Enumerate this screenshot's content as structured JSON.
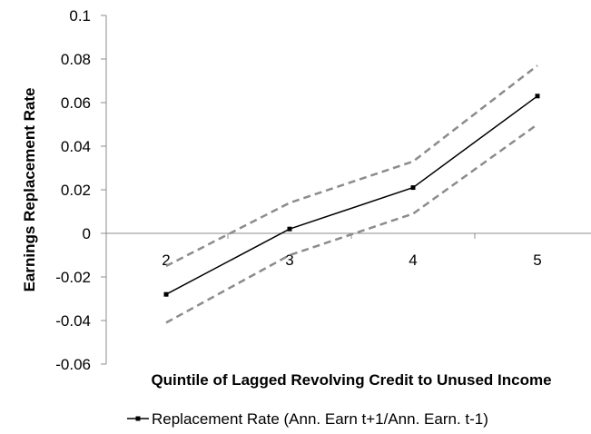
{
  "chart_data": {
    "type": "line",
    "title": "",
    "xlabel": "Quintile of Lagged Revolving Credit to Unused Income",
    "ylabel": "Earnings Replacement Rate",
    "categories": [
      "2",
      "3",
      "4",
      "5"
    ],
    "ylim": [
      -0.06,
      0.1
    ],
    "yticks": [
      "0.1",
      "0.08",
      "0.06",
      "0.04",
      "0.02",
      "0",
      "-0.02",
      "-0.04",
      "-0.06"
    ],
    "grid": false,
    "legend_position": "bottom",
    "series": [
      {
        "name": "Replacement Rate (Ann. Earn t+1/Ann. Earn. t-1)",
        "values": [
          -0.028,
          0.002,
          0.021,
          0.063
        ],
        "style": "solid",
        "color": "#000000",
        "marker": "square"
      },
      {
        "values": [
          -0.015,
          0.014,
          0.033,
          0.077
        ],
        "style": "dashed",
        "color": "#8c8c8c"
      },
      {
        "values": [
          -0.041,
          -0.01,
          0.009,
          0.05
        ],
        "style": "dashed",
        "color": "#8c8c8c"
      }
    ]
  }
}
